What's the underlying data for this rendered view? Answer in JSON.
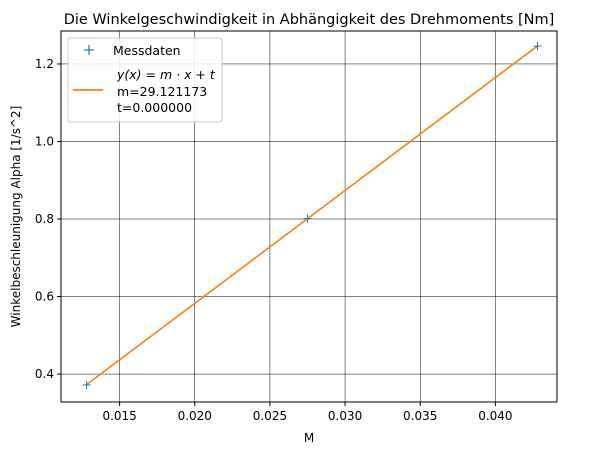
{
  "chart_data": {
    "type": "scatter",
    "title": "Die Winkelgeschwindigkeit in Abhängigkeit des Drehmoments [Nm]",
    "xlabel": "M",
    "ylabel": "Winkelbeschleunigung Alpha [1/s^2]",
    "xlim": [
      0.0111,
      0.0441
    ],
    "ylim": [
      0.328,
      1.285
    ],
    "xticks": [
      0.015,
      0.02,
      0.025,
      0.03,
      0.035,
      0.04
    ],
    "xtick_labels": [
      "0.015",
      "0.020",
      "0.025",
      "0.030",
      "0.035",
      "0.040"
    ],
    "yticks": [
      0.4,
      0.6,
      0.8,
      1.0,
      1.2
    ],
    "ytick_labels": [
      "0.4",
      "0.6",
      "0.8",
      "1.0",
      "1.2"
    ],
    "grid": true,
    "legend_position": "top-left",
    "series": [
      {
        "name": "Messdaten",
        "kind": "markers",
        "marker": "+",
        "color": "#1f77b4",
        "x": [
          0.0128,
          0.0275,
          0.0428
        ],
        "y": [
          0.372,
          0.801,
          1.246
        ]
      },
      {
        "name": "y(x) = m · x + t",
        "kind": "line",
        "color": "#ff7f0e",
        "x": [
          0.0128,
          0.0428
        ],
        "y": [
          0.3728,
          1.2464
        ]
      }
    ],
    "legend": {
      "markers_label": "Messdaten",
      "fit_formula": "y(x) = m · x + t",
      "fit_m": "m=29.121173",
      "fit_t": "t=0.000000"
    }
  }
}
